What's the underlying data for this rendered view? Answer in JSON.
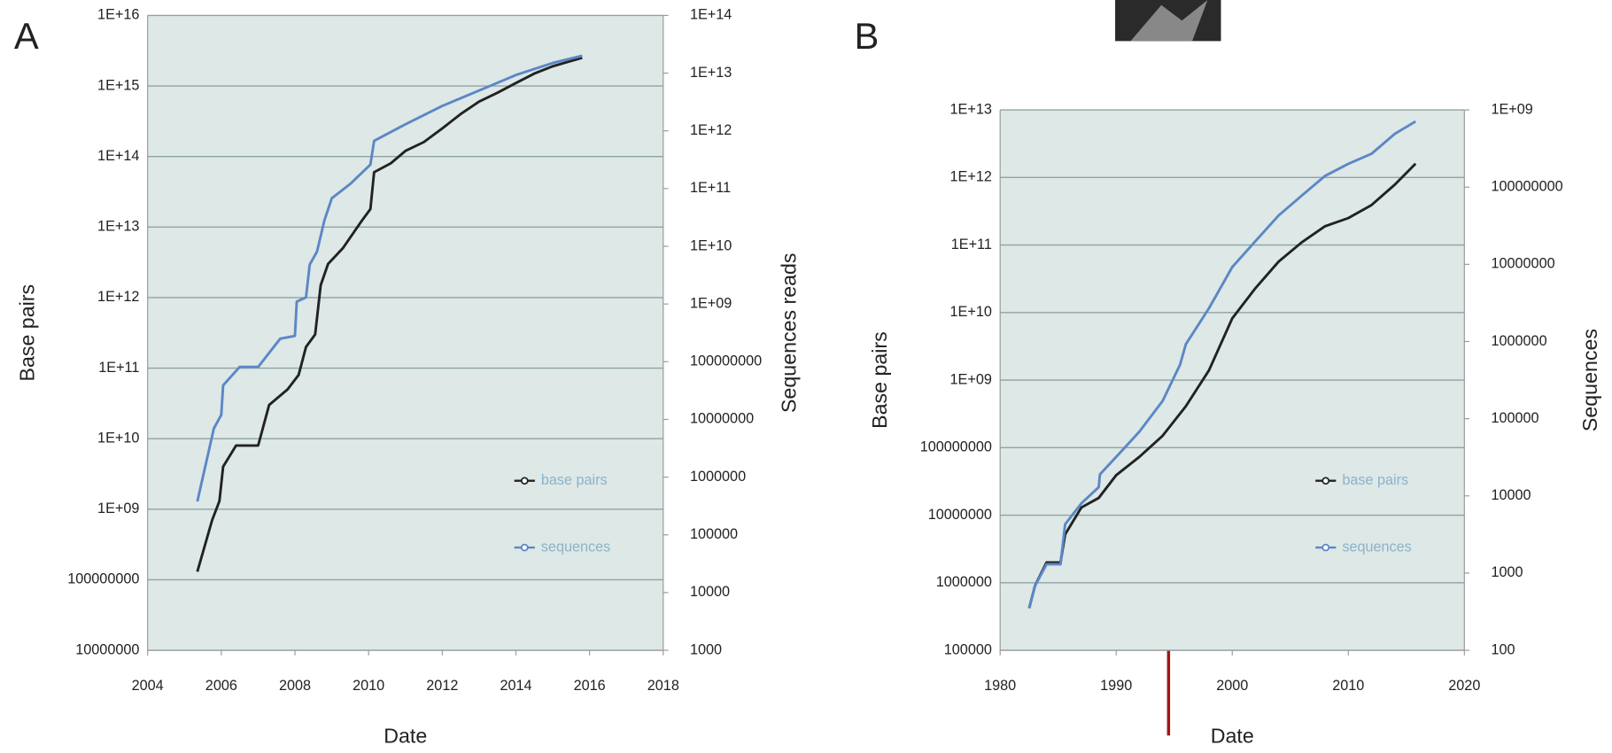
{
  "chart_data": [
    {
      "type": "line",
      "label": "A",
      "x_label": "Date",
      "y_label": "Base pairs",
      "y2_label": "Sequences reads",
      "log_scale": true,
      "grid": true,
      "legend": "lower right",
      "xlim": [
        2004,
        2018
      ],
      "xticks": [
        2004,
        2006,
        2008,
        2010,
        2012,
        2014,
        2016,
        2018
      ],
      "ylim": [
        10000000,
        1e+16
      ],
      "yticks": [
        10000000,
        100000000,
        {
          "value": 1000000000.0,
          "label": "1E+09"
        },
        {
          "value": 10000000000.0,
          "label": "1E+10"
        },
        {
          "value": 100000000000.0,
          "label": "1E+11"
        },
        {
          "value": 1000000000000.0,
          "label": "1E+12"
        },
        {
          "value": 10000000000000.0,
          "label": "1E+13"
        },
        {
          "value": 100000000000000.0,
          "label": "1E+14"
        },
        {
          "value": 1000000000000000.0,
          "label": "1E+15"
        },
        {
          "value": 1e+16,
          "label": "1E+16"
        }
      ],
      "y2lim": [
        1000,
        100000000000000.0
      ],
      "y2ticks": [
        1000,
        10000,
        100000,
        1000000,
        10000000,
        100000000,
        {
          "value": 1000000000.0,
          "label": "1E+09"
        },
        {
          "value": 10000000000.0,
          "label": "1E+10"
        },
        {
          "value": 100000000000.0,
          "label": "1E+11"
        },
        {
          "value": 1000000000000.0,
          "label": "1E+12"
        },
        {
          "value": 10000000000000.0,
          "label": "1E+13"
        },
        {
          "value": 100000000000000.0,
          "label": "1E+14"
        }
      ],
      "series": [
        {
          "name": "base pairs",
          "color": "#222222",
          "x": [
            2005.35,
            2005.75,
            2005.95,
            2006.05,
            2006.4,
            2007,
            2007.3,
            2007.8,
            2008.1,
            2008.3,
            2008.55,
            2008.7,
            2008.9,
            2009.3,
            2009.8,
            2010.05,
            2010.15,
            2010.6,
            2011,
            2011.5,
            2012,
            2012.5,
            2013,
            2013.5,
            2014,
            2014.5,
            2015,
            2015.8
          ],
          "values": [
            130000000,
            700000000,
            1300000000,
            4000000000,
            8000000000,
            8000000000,
            30000000000,
            50000000000,
            80000000000,
            200000000000,
            300000000000,
            1500000000000.0,
            3000000000000.0,
            5000000000000.0,
            12000000000000.0,
            18000000000000.0,
            60000000000000.0,
            80000000000000.0,
            120000000000000.0,
            160000000000000.0,
            250000000000000.0,
            400000000000000.0,
            600000000000000.0,
            800000000000000.0,
            1100000000000000.0,
            1500000000000000.0,
            1900000000000000.0,
            2500000000000000.0
          ]
        },
        {
          "name": "sequences",
          "color": "#5b87c5",
          "axis": "y2",
          "x": [
            2005.35,
            2005.8,
            2006.0,
            2006.05,
            2006.5,
            2007,
            2007.6,
            2008.0,
            2008.05,
            2008.3,
            2008.4,
            2008.6,
            2008.8,
            2009,
            2009.5,
            2010.05,
            2010.15,
            2011,
            2012,
            2013,
            2014,
            2015,
            2015.8
          ],
          "values": [
            380000,
            7000000,
            12000000,
            39000000,
            81000000,
            81000000,
            250000000,
            280000000,
            1100000000,
            1300000000,
            4800000000,
            8100000000,
            28000000000,
            68000000000,
            120000000000,
            260000000000,
            670000000000,
            1300000000000.0,
            2700000000000.0,
            5000000000000.0,
            9300000000000.0,
            15000000000000.0,
            20000000000000.0
          ]
        }
      ]
    },
    {
      "type": "line",
      "label": "B",
      "x_label": "Date",
      "y_label": "Base pairs",
      "y2_label": "Sequences",
      "log_scale": true,
      "grid": true,
      "legend": "lower right",
      "xlim": [
        1980,
        2020
      ],
      "xticks": [
        1980,
        1990,
        2000,
        2010,
        2020
      ],
      "ylim": [
        100000,
        10000000000000.0
      ],
      "yticks": [
        100000,
        1000000,
        10000000,
        100000000,
        {
          "value": 1000000000.0,
          "label": "1E+09"
        },
        {
          "value": 10000000000.0,
          "label": "1E+10"
        },
        {
          "value": 100000000000.0,
          "label": "1E+11"
        },
        {
          "value": 1000000000000.0,
          "label": "1E+12"
        },
        {
          "value": 10000000000000.0,
          "label": "1E+13"
        }
      ],
      "y2lim": [
        100,
        1000000000.0
      ],
      "y2ticks": [
        100,
        1000,
        10000,
        100000,
        1000000,
        10000000,
        100000000,
        {
          "value": 1000000000.0,
          "label": "1E+09"
        }
      ],
      "series": [
        {
          "name": "base pairs",
          "color": "#222222",
          "x": [
            1982.5,
            1983,
            1984,
            1985.2,
            1985.6,
            1987,
            1988.5,
            1990,
            1992,
            1994,
            1996,
            1998,
            2000,
            2002,
            2004,
            2006,
            2008,
            2010,
            2012,
            2014,
            2015.8
          ],
          "values": [
            420000,
            900000,
            2000000,
            2000000,
            5200000,
            13000000,
            18000000,
            39000000,
            73000000,
            150000000,
            410000000,
            1400000000,
            8200000000,
            23000000000,
            57000000000,
            110000000000,
            190000000000,
            250000000000,
            390000000000,
            780000000000,
            1600000000000.0
          ]
        },
        {
          "name": "sequences",
          "color": "#5b87c5",
          "axis": "y2",
          "x": [
            1982.5,
            1983,
            1984,
            1985.2,
            1985.6,
            1987,
            1988.5,
            1988.6,
            1990,
            1992,
            1994,
            1995.5,
            1996,
            1998,
            2000,
            2002,
            2004,
            2006,
            2008,
            2010,
            2012,
            2014,
            2015.8
          ],
          "values": [
            350,
            680,
            1300,
            1300,
            4300,
            8000,
            13000,
            19000,
            32000,
            68000,
            170000,
            500000,
            920000,
            2700000,
            9200000,
            20000000,
            43000000,
            78000000,
            140000000,
            200000000,
            270000000,
            490000000,
            710000000
          ]
        }
      ]
    }
  ]
}
